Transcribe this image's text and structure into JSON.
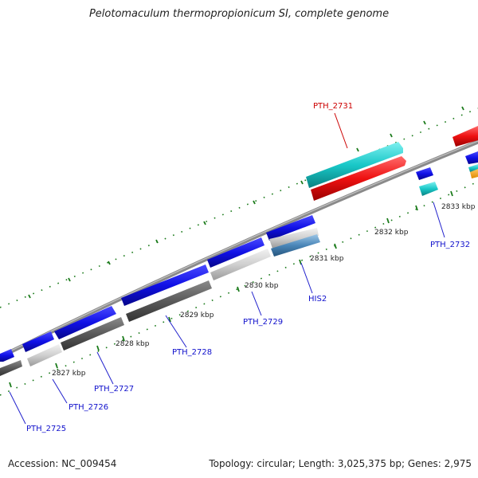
{
  "title": "Pelotomaculum thermopropionicum SI, complete genome",
  "footer": {
    "accession": "Accession: NC_009454",
    "summary": "Topology: circular; Length: 3,025,375 bp; Genes: 2,975"
  },
  "kbp_labels": [
    "2827 kbp",
    "2828 kbp",
    "2829 kbp",
    "2830 kbp",
    "2831 kbp",
    "2832 kbp",
    "2833 kbp"
  ],
  "gene_labels": [
    "PTH_2725",
    "PTH_2726",
    "PTH_2727",
    "PTH_2728",
    "PTH_2729",
    "HIS2",
    "PTH_2731",
    "PTH_2732"
  ],
  "colors": {
    "cds": "#1010e6",
    "rna_highlight": "#ee1111",
    "teal": "#19c8c8",
    "dark_gray": "#5a5a5a",
    "light_gray": "#cfcfcf",
    "steel_blue": "#4a86b8",
    "backbone": "#8a8a8a",
    "tick": "#1a7a1a",
    "label_blue": "#1010cc",
    "label_red": "#cc0000"
  }
}
